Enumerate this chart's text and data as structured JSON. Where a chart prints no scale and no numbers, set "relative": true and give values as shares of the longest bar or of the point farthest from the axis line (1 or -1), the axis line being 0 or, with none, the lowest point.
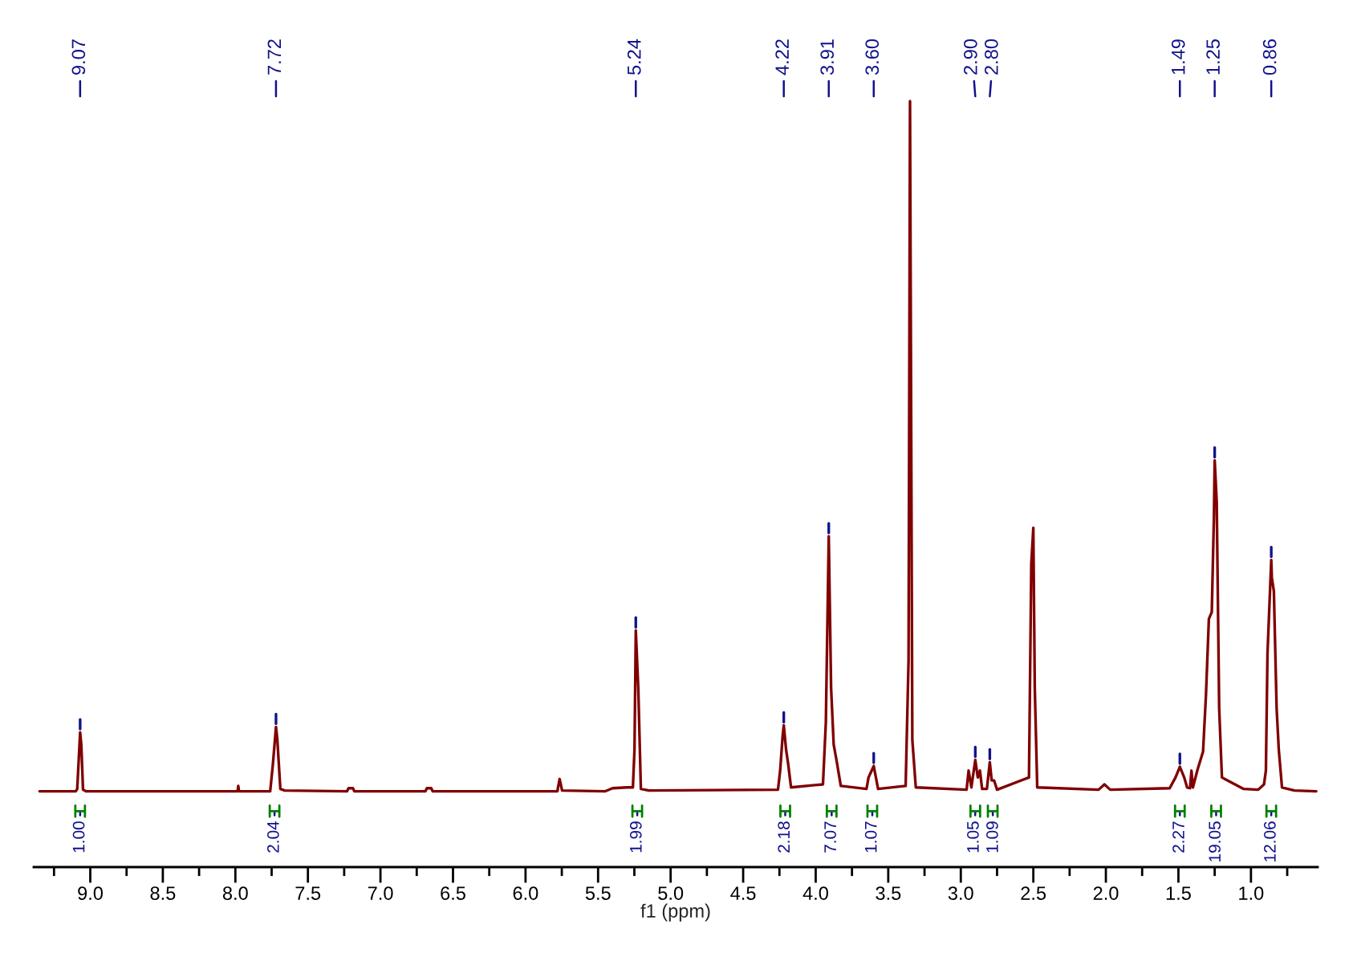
{
  "chart_data": {
    "type": "line",
    "relative": true,
    "xlabel": "f1 (ppm)",
    "xlim": [
      9.39,
      0.54
    ],
    "tick_labels": "x",
    "xticks": [
      {
        "value": 9.25,
        "label": null
      },
      {
        "value": 9,
        "label": "9.0"
      },
      {
        "value": 8.75,
        "label": null
      },
      {
        "value": 8.5,
        "label": "8.5"
      },
      {
        "value": 8.25,
        "label": null
      },
      {
        "value": 8,
        "label": "8.0"
      },
      {
        "value": 7.75,
        "label": null
      },
      {
        "value": 7.5,
        "label": "7.5"
      },
      {
        "value": 7.25,
        "label": null
      },
      {
        "value": 7,
        "label": "7.0"
      },
      {
        "value": 6.75,
        "label": null
      },
      {
        "value": 6.5,
        "label": "6.5"
      },
      {
        "value": 6.25,
        "label": null
      },
      {
        "value": 6,
        "label": "6.0"
      },
      {
        "value": 5.75,
        "label": null
      },
      {
        "value": 5.5,
        "label": "5.5"
      },
      {
        "value": 5.25,
        "label": null
      },
      {
        "value": 5,
        "label": "5.0"
      },
      {
        "value": 4.75,
        "label": null
      },
      {
        "value": 4.5,
        "label": "4.5"
      },
      {
        "value": 4.25,
        "label": null
      },
      {
        "value": 4,
        "label": "4.0"
      },
      {
        "value": 3.75,
        "label": null
      },
      {
        "value": 3.5,
        "label": "3.5"
      },
      {
        "value": 3.25,
        "label": null
      },
      {
        "value": 3,
        "label": "3.0"
      },
      {
        "value": 2.75,
        "label": null
      },
      {
        "value": 2.5,
        "label": "2.5"
      },
      {
        "value": 2.25,
        "label": null
      },
      {
        "value": 2,
        "label": "2.0"
      },
      {
        "value": 1.75,
        "label": null
      },
      {
        "value": 1.5,
        "label": "1.5"
      },
      {
        "value": 1.25,
        "label": null
      },
      {
        "value": 1,
        "label": "1.0"
      },
      {
        "value": 0.75,
        "label": null
      }
    ],
    "series": [
      {
        "color": "#800000",
        "x": [
          9.35,
          9.1,
          9.09,
          9.07,
          9.062,
          9.05,
          9.03,
          7.985,
          7.98,
          7.975,
          7.76,
          7.741,
          7.72,
          7.711,
          7.69,
          7.66,
          7.23,
          7.22,
          7.19,
          7.18,
          6.69,
          6.68,
          6.65,
          6.64,
          5.78,
          5.776,
          5.765,
          5.748,
          5.45,
          5.4,
          5.3,
          5.26,
          5.249,
          5.24,
          5.223,
          5.205,
          5.15,
          4.26,
          4.245,
          4.228,
          4.22,
          4.204,
          4.19,
          4.17,
          3.95,
          3.93,
          3.91,
          3.894,
          3.876,
          3.857,
          3.827,
          3.65,
          3.636,
          3.614,
          3.6,
          3.585,
          3.57,
          3.38,
          3.36,
          3.35,
          3.334,
          3.31,
          2.96,
          2.946,
          2.927,
          2.9,
          2.883,
          2.868,
          2.853,
          2.82,
          2.8,
          2.787,
          2.77,
          2.75,
          2.53,
          2.514,
          2.5,
          2.49,
          2.473,
          2.05,
          2.01,
          1.97,
          1.56,
          1.52,
          1.49,
          1.46,
          1.44,
          1.42,
          1.41,
          1.4,
          1.37,
          1.33,
          1.31,
          1.29,
          1.27,
          1.255,
          1.25,
          1.236,
          1.219,
          1.2,
          1.05,
          0.95,
          0.91,
          0.897,
          0.886,
          0.86,
          0.856,
          0.842,
          0.823,
          0.808,
          0.786,
          0.7,
          0.55
        ],
        "values": [
          0.099,
          0.099,
          0.102,
          0.176,
          0.16,
          0.101,
          0.099,
          0.099,
          0.106,
          0.099,
          0.099,
          0.135,
          0.183,
          0.167,
          0.102,
          0.1,
          0.099,
          0.103,
          0.103,
          0.099,
          0.099,
          0.103,
          0.103,
          0.099,
          0.099,
          0.104,
          0.115,
          0.1,
          0.099,
          0.103,
          0.104,
          0.104,
          0.153,
          0.309,
          0.234,
          0.102,
          0.1,
          0.101,
          0.126,
          0.171,
          0.185,
          0.153,
          0.135,
          0.104,
          0.108,
          0.189,
          0.432,
          0.234,
          0.16,
          0.14,
          0.106,
          0.102,
          0.117,
          0.126,
          0.132,
          0.117,
          0.102,
          0.106,
          0.27,
          1,
          0.166,
          0.104,
          0.101,
          0.126,
          0.104,
          0.14,
          0.117,
          0.126,
          0.102,
          0.102,
          0.137,
          0.113,
          0.113,
          0.101,
          0.117,
          0.396,
          0.443,
          0.234,
          0.104,
          0.101,
          0.108,
          0.101,
          0.103,
          0.117,
          0.131,
          0.117,
          0.104,
          0.103,
          0.126,
          0.104,
          0.126,
          0.151,
          0.225,
          0.324,
          0.333,
          0.459,
          0.531,
          0.477,
          0.207,
          0.117,
          0.102,
          0.101,
          0.108,
          0.126,
          0.279,
          0.401,
          0.378,
          0.36,
          0.207,
          0.153,
          0.104,
          0.1,
          0.099
        ]
      }
    ],
    "annotations": [
      {
        "text": "9.07",
        "x": 9.07
      },
      {
        "text": "7.72",
        "x": 7.72
      },
      {
        "text": "5.24",
        "x": 5.24
      },
      {
        "text": "4.22",
        "x": 4.22
      },
      {
        "text": "3.91",
        "x": 3.91
      },
      {
        "text": "3.60",
        "x": 3.6
      },
      {
        "text": "2.90",
        "x": 2.9
      },
      {
        "text": "2.80",
        "x": 2.8
      },
      {
        "text": "1.49",
        "x": 1.49
      },
      {
        "text": "1.25",
        "x": 1.25
      },
      {
        "text": "0.86",
        "x": 0.86
      },
      {
        "text": "1.00",
        "x": 9.07,
        "y": 0.073
      },
      {
        "text": "2.04",
        "x": 7.73,
        "y": 0.073
      },
      {
        "text": "1.99",
        "x": 5.23,
        "y": 0.073
      },
      {
        "text": "2.18",
        "x": 4.21,
        "y": 0.073
      },
      {
        "text": "7.07",
        "x": 3.89,
        "y": 0.073
      },
      {
        "text": "1.07",
        "x": 3.61,
        "y": 0.073
      },
      {
        "text": "1.05",
        "x": 2.9,
        "y": 0.073
      },
      {
        "text": "1.09",
        "x": 2.78,
        "y": 0.073
      },
      {
        "text": "2.27",
        "x": 1.49,
        "y": 0.073
      },
      {
        "text": "19.05",
        "x": 1.24,
        "y": 0.073
      },
      {
        "text": "12.06",
        "x": 0.86,
        "y": 0.073
      }
    ]
  }
}
